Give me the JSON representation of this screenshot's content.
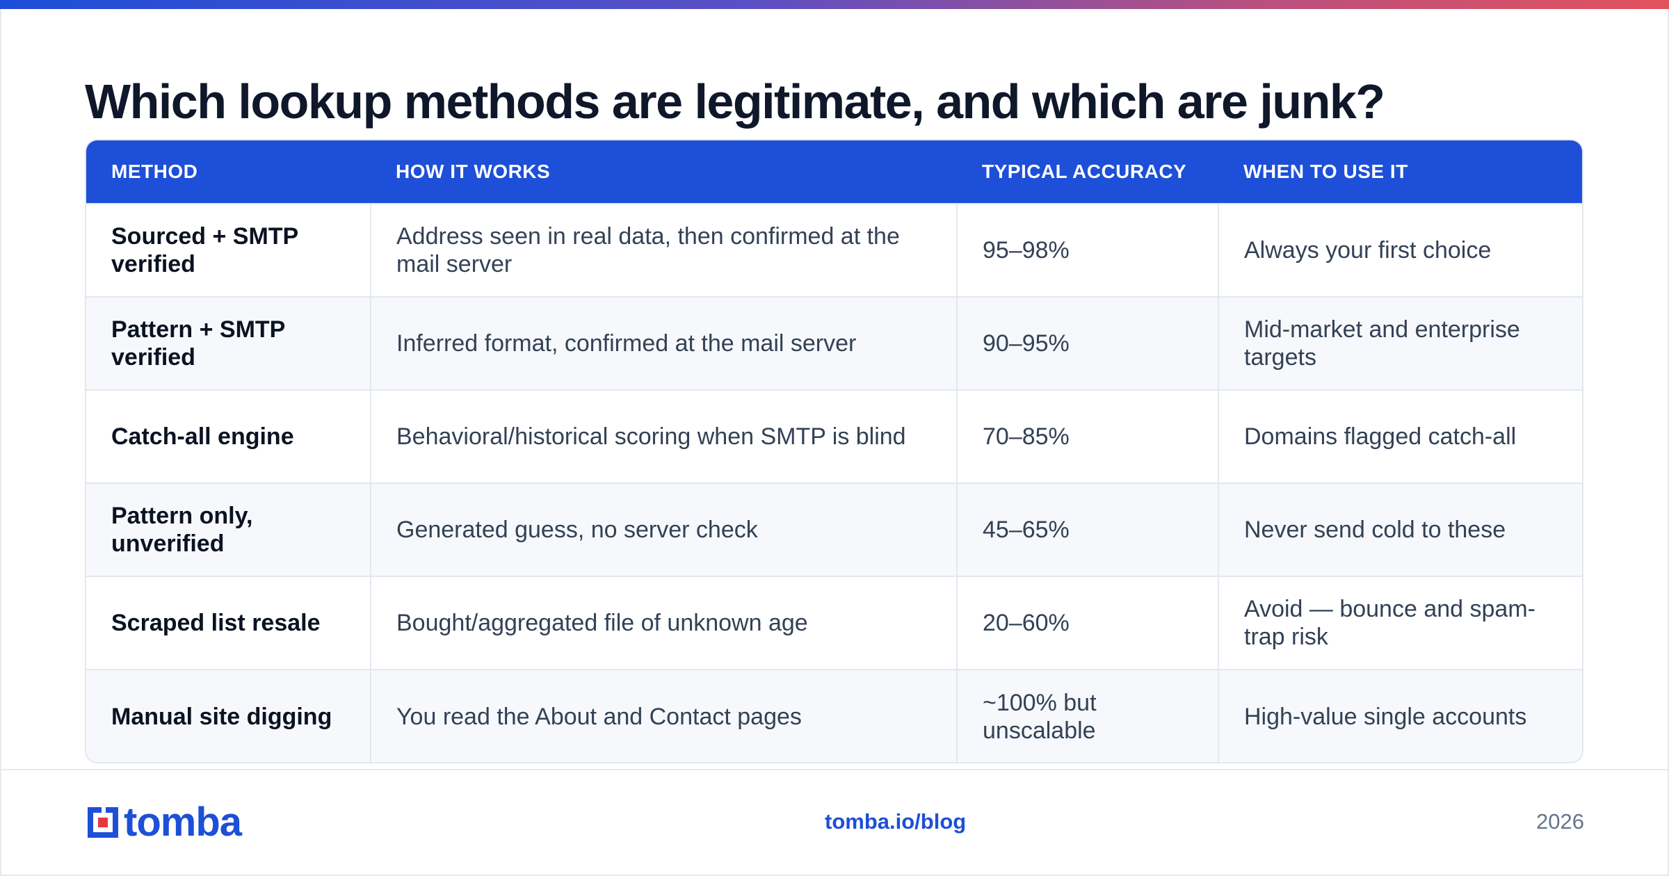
{
  "title": "Which lookup methods are legitimate, and which are junk?",
  "colors": {
    "accent": "#1d4fd8",
    "gradient_start": "#1d4ed8",
    "gradient_end": "#e2525d",
    "logo_red": "#e53940"
  },
  "table": {
    "headers": [
      "METHOD",
      "HOW IT WORKS",
      "TYPICAL ACCURACY",
      "WHEN TO USE IT"
    ],
    "rows": [
      [
        "Sourced + SMTP verified",
        "Address seen in real data, then confirmed at the mail server",
        "95–98%",
        "Always your first choice"
      ],
      [
        "Pattern + SMTP verified",
        "Inferred format, confirmed at the mail server",
        "90–95%",
        "Mid-market and enterprise targets"
      ],
      [
        "Catch-all engine",
        "Behavioral/historical scoring when SMTP is blind",
        "70–85%",
        "Domains flagged catch-all"
      ],
      [
        "Pattern only, unverified",
        "Generated guess, no server check",
        "45–65%",
        "Never send cold to these"
      ],
      [
        "Scraped list resale",
        "Bought/aggregated file of unknown age",
        "20–60%",
        "Avoid — bounce and spam-trap risk"
      ],
      [
        "Manual site digging",
        "You read the About and Contact pages",
        "~100% but unscalable",
        "High-value single accounts"
      ]
    ]
  },
  "footer": {
    "logo_text": "tomba",
    "logo_icon": "tomba-logo-icon",
    "link": "tomba.io/blog",
    "year": "2026"
  }
}
